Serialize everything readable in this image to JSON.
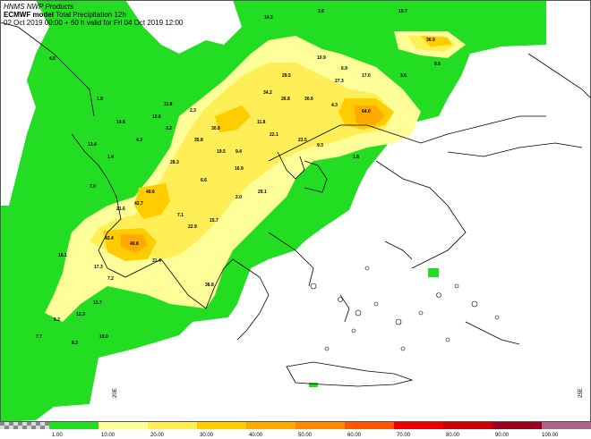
{
  "header": {
    "source": "HNMS NWP Products",
    "model": "ECMWF model",
    "parameter": "Total Precipitation 12h",
    "validity": "02 Oct 2019 00:00 + 60 h valid for Fri 04 Oct 2019 12:00"
  },
  "colors": {
    "land_bg": "#ffffff",
    "level_1": "#22dd22",
    "level_10": "#ffff99",
    "level_20": "#ffee55",
    "level_30": "#ffcc00",
    "level_40": "#ffaa00",
    "level_50": "#ff8800",
    "level_60": "#ff5500",
    "level_70": "#ee0000",
    "level_80": "#cc0000",
    "level_90": "#990022",
    "level_100": "#aa6688"
  },
  "legend": {
    "labels": [
      "1.00",
      "10.00",
      "20.00",
      "30.00",
      "40.00",
      "50.00",
      "60.00",
      "70.00",
      "80.00",
      "90.00",
      "100.00"
    ]
  },
  "grid_labels": [
    "20E",
    "25E"
  ],
  "values": [
    "2.6",
    "10.7",
    "14.2",
    "36.9",
    "4.5",
    "8.5",
    "10.9",
    "6.9",
    "29.5",
    "27.3",
    "17.0",
    "3.6",
    "1.9",
    "12.6",
    "11.8",
    "34.2",
    "26.8",
    "30.6",
    "4.3",
    "64.0",
    "14.6",
    "2.3",
    "3.2",
    "11.8",
    "22.1",
    "23.5",
    "9.3",
    "13.4",
    "4.3",
    "35.8",
    "30.8",
    "19.5",
    "9.4",
    "1.8",
    "28.3",
    "16.9",
    "1.4",
    "7.0",
    "49.6",
    "6.6",
    "2.0",
    "29.1",
    "42.7",
    "21.6",
    "7.1",
    "15.7",
    "22.9",
    "43.4",
    "40.8",
    "16.1",
    "17.3",
    "31.4",
    "13.7",
    "38.8",
    "12.3",
    "8.3",
    "10.0",
    "7.7",
    "6.2",
    "7.2"
  ]
}
